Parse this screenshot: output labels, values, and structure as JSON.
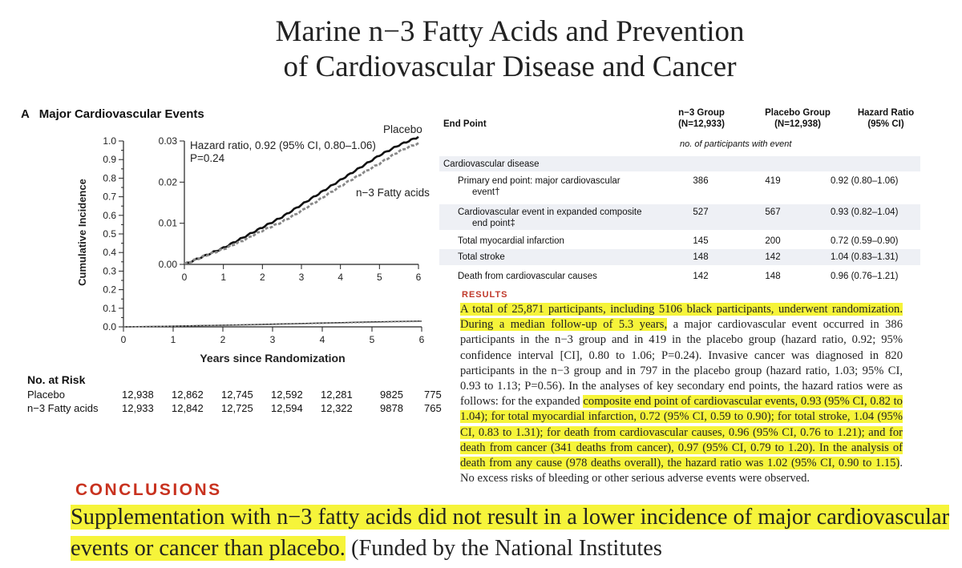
{
  "title_lines": [
    "Marine n−3 Fatty Acids and Prevention",
    "of Cardiovascular Disease and Cancer"
  ],
  "panel_label": "A   Major Cardiovascular Events",
  "chart_data": {
    "type": "line",
    "xlabel": "Years since Randomization",
    "ylabel": "Cumulative Incidence",
    "xlim": [
      0,
      6
    ],
    "ylim": [
      0,
      1.0
    ],
    "x_ticks": [
      "0",
      "1",
      "2",
      "3",
      "4",
      "5",
      "6"
    ],
    "y_ticks": [
      "0.0",
      "0.1",
      "0.2",
      "0.3",
      "0.4",
      "0.5",
      "0.6",
      "0.7",
      "0.8",
      "0.9",
      "1.0"
    ],
    "series": [
      {
        "name": "Placebo",
        "color": "#111111",
        "x": [
          0,
          0.5,
          1,
          1.5,
          2,
          2.5,
          3,
          3.5,
          4,
          4.5,
          5,
          5.5,
          6
        ],
        "y": [
          0,
          0.002,
          0.004,
          0.0065,
          0.009,
          0.0115,
          0.0145,
          0.0175,
          0.0205,
          0.0235,
          0.0265,
          0.029,
          0.031
        ]
      },
      {
        "name": "n−3 Fatty acids",
        "color": "#888888",
        "x": [
          0,
          0.5,
          1,
          1.5,
          2,
          2.5,
          3,
          3.5,
          4,
          4.5,
          5,
          5.5,
          6
        ],
        "y": [
          0,
          0.002,
          0.0037,
          0.0058,
          0.0082,
          0.0103,
          0.013,
          0.016,
          0.019,
          0.0218,
          0.0245,
          0.0275,
          0.0295
        ]
      }
    ],
    "inset": {
      "xlim": [
        0,
        6
      ],
      "ylim": [
        0,
        0.03
      ],
      "x_ticks": [
        "0",
        "1",
        "2",
        "3",
        "4",
        "5",
        "6"
      ],
      "y_ticks": [
        "0.00",
        "0.01",
        "0.02",
        "0.03"
      ],
      "annotation_lines": [
        "Hazard ratio, 0.92 (95% CI, 0.80–1.06)",
        "P=0.24"
      ],
      "placebo_label": "Placebo",
      "n3_label": "n−3 Fatty acids"
    }
  },
  "risk": {
    "header": "No. at Risk",
    "rows": [
      {
        "label": "Placebo",
        "values": [
          "12,938",
          "12,862",
          "12,745",
          "12,592",
          "12,281",
          "9825",
          "775"
        ]
      },
      {
        "label": "n−3 Fatty acids",
        "values": [
          "12,933",
          "12,842",
          "12,725",
          "12,594",
          "12,322",
          "9878",
          "765"
        ]
      }
    ]
  },
  "table": {
    "col_endpoint": "End Point",
    "col_n3": [
      "n−3 Group",
      "(N=12,933)"
    ],
    "col_placebo": [
      "Placebo Group",
      "(N=12,938)"
    ],
    "col_hr": [
      "Hazard Ratio",
      "(95% CI)"
    ],
    "subheader": "no. of participants with event",
    "section": "Cardiovascular disease",
    "rows": [
      {
        "endpoint": [
          "Primary end point: major cardiovascular",
          "event†"
        ],
        "n3": "386",
        "placebo": "419",
        "hr": "0.92 (0.80–1.06)"
      },
      {
        "endpoint": [
          "Cardiovascular event in expanded composite",
          "end point‡"
        ],
        "n3": "527",
        "placebo": "567",
        "hr": "0.93 (0.82–1.04)"
      },
      {
        "endpoint": [
          "Total myocardial infarction"
        ],
        "n3": "145",
        "placebo": "200",
        "hr": "0.72 (0.59–0.90)"
      },
      {
        "endpoint": [
          "Total stroke"
        ],
        "n3": "148",
        "placebo": "142",
        "hr": "1.04 (0.83–1.31)"
      },
      {
        "endpoint": [
          "Death from cardiovascular causes"
        ],
        "n3": "142",
        "placebo": "148",
        "hr": "0.96 (0.76–1.21)"
      }
    ]
  },
  "results": {
    "label": "RESULTS",
    "hl1": "A total of 25,871 participants, including 5106 black participants, underwent randomization. During a median follow-up of 5.3 years,",
    "plain1": " a major cardiovascular event occurred in 386 participants in the n−3 group and in 419 in the placebo group (hazard ratio, 0.92; 95% confidence interval [CI], 0.80 to 1.06; P=0.24). Invasive cancer was diagnosed in 820 participants in the n−3 group and in 797 in the placebo group (hazard ratio, 1.03; 95% CI, 0.93 to 1.13; P=0.56). In the analyses of key secondary end points, the hazard ratios were as follows: for the expanded ",
    "hl2": "composite end point of cardiovascular events, 0.93 (95% CI, 0.82 to 1.04); for total myocardial infarction, 0.72 (95% CI, 0.59 to 0.90); for total stroke, 1.04 (95% CI, 0.83 to 1.31); for death from cardiovascular causes, 0.96 (95% CI, 0.76 to 1.21); and for death from cancer (341 deaths from cancer), 0.97 (95% CI, 0.79 to 1.20). In the analysis of death from any cause (978 deaths overall), the hazard ratio was 1.02 (95% CI, 0.90 to 1.15)",
    "plain2": ". No excess risks of bleeding or other serious adverse events were observed."
  },
  "conclusions": {
    "label": "CONCLUSIONS",
    "hl": "Supplementation with n−3 fatty acids did not result in a lower incidence of major cardiovascular events or cancer than placebo.",
    "plain": " (Funded by the National Institutes"
  },
  "colors": {
    "highlight": "#f6f43a",
    "section_red": "#c8321f",
    "table_shade": "#eef0f5"
  }
}
